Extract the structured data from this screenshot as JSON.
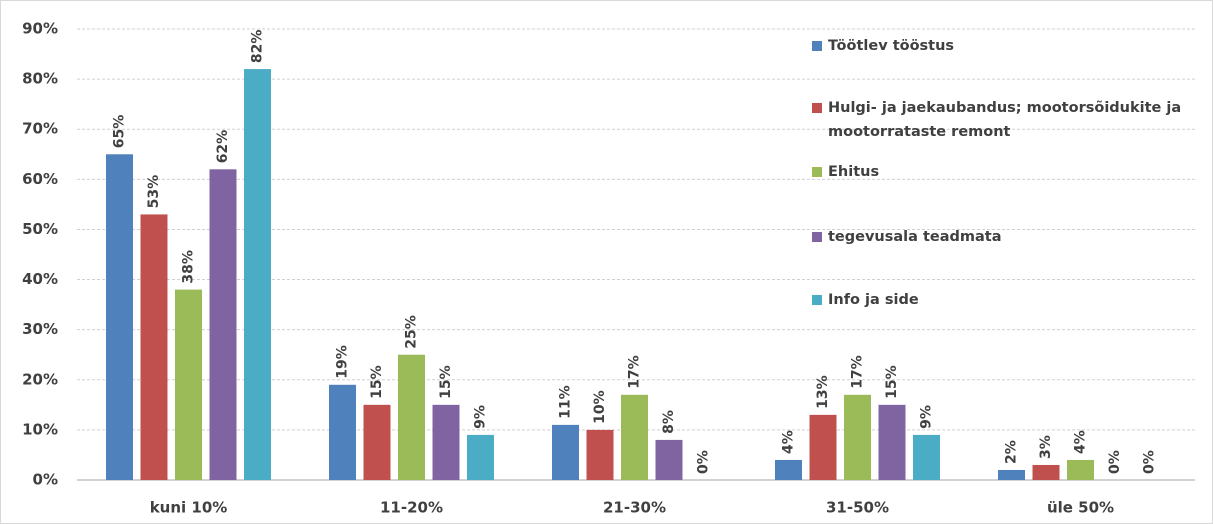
{
  "chart_data": {
    "type": "bar",
    "categories": [
      "kuni 10%",
      "11-20%",
      "21-30%",
      "31-50%",
      "üle 50%"
    ],
    "series": [
      {
        "name": "Töötlev tööstus",
        "color": "#4f81bd",
        "values": [
          65,
          19,
          11,
          4,
          2
        ],
        "value_labels": [
          "65%",
          "19%",
          "11%",
          "4%",
          "2%"
        ]
      },
      {
        "name": "Hulgi- ja jaekaubandus; mootorsõidukite ja mootorrataste remont",
        "color": "#c0504d",
        "values": [
          53,
          15,
          10,
          13,
          3
        ],
        "value_labels": [
          "53%",
          "15%",
          "10%",
          "13%",
          "3%"
        ]
      },
      {
        "name": "Ehitus",
        "color": "#9bbb59",
        "values": [
          38,
          25,
          17,
          17,
          4
        ],
        "value_labels": [
          "38%",
          "25%",
          "17%",
          "17%",
          "4%"
        ]
      },
      {
        "name": "tegevusala teadmata",
        "color": "#8064a2",
        "values": [
          62,
          15,
          8,
          15,
          0
        ],
        "value_labels": [
          "62%",
          "15%",
          "8%",
          "15%",
          "0%"
        ]
      },
      {
        "name": "Info ja side",
        "color": "#4bacc6",
        "values": [
          82,
          9,
          0,
          9,
          0
        ],
        "value_labels": [
          "82%",
          "9%",
          "0%",
          "9%",
          "0%"
        ]
      }
    ],
    "ylim": [
      0,
      90
    ],
    "yticks": [
      {
        "value": 0,
        "label": "0%"
      },
      {
        "value": 10,
        "label": "10%"
      },
      {
        "value": 20,
        "label": "20%"
      },
      {
        "value": 30,
        "label": "30%"
      },
      {
        "value": 40,
        "label": "40%"
      },
      {
        "value": 50,
        "label": "50%"
      },
      {
        "value": 60,
        "label": "60%"
      },
      {
        "value": 70,
        "label": "70%"
      },
      {
        "value": 80,
        "label": "80%"
      },
      {
        "value": 90,
        "label": "90%"
      }
    ],
    "grid": true,
    "legend": "right"
  }
}
